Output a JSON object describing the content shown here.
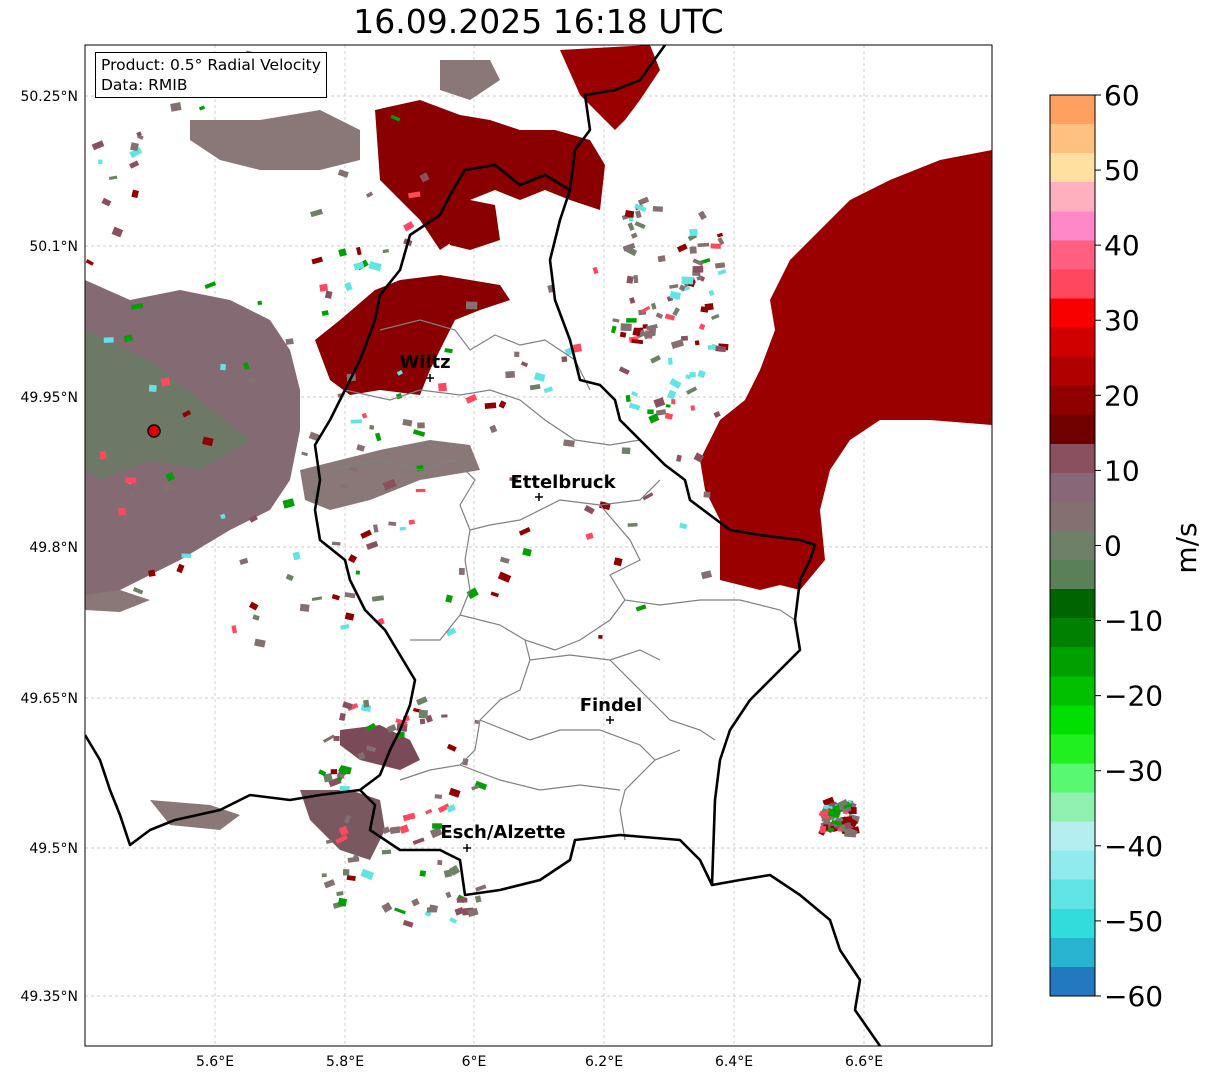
{
  "title": "16.09.2025 16:18 UTC",
  "info": {
    "product": "Product: 0.5° Radial Velocity",
    "source": "Data: RMIB"
  },
  "lat_ticks": [
    "50.25°N",
    "50.1°N",
    "49.95°N",
    "49.8°N",
    "49.65°N",
    "49.5°N",
    "49.35°N"
  ],
  "lon_ticks": [
    "5.6°E",
    "5.8°E",
    "6°E",
    "6.2°E",
    "6.4°E",
    "6.6°E"
  ],
  "colorbar": {
    "unit": "m/s",
    "ticks": [
      "60",
      "50",
      "40",
      "30",
      "20",
      "10",
      "0",
      "−10",
      "−20",
      "−30",
      "−40",
      "−50",
      "−60"
    ],
    "range": [
      -60,
      60
    ],
    "colors": [
      "#2279c0",
      "#28b4d0",
      "#30dcdc",
      "#60e4e4",
      "#90ecec",
      "#b4eeee",
      "#90f0b0",
      "#58f870",
      "#20f020",
      "#00e000",
      "#00c000",
      "#00a000",
      "#008000",
      "#006400",
      "#5a805a",
      "#6e8068",
      "#847070",
      "#886878",
      "#8a5060",
      "#700000",
      "#900000",
      "#b00000",
      "#d00000",
      "#f80000",
      "#ff4860",
      "#ff6080",
      "#ff88c8",
      "#ffb0c0",
      "#ffe0a0",
      "#ffc080",
      "#ffa060"
    ]
  },
  "cities": [
    {
      "name": "Wiltz"
    },
    {
      "name": "Ettelbruck"
    },
    {
      "name": "Findel"
    },
    {
      "name": "Esch/Alzette"
    }
  ]
}
